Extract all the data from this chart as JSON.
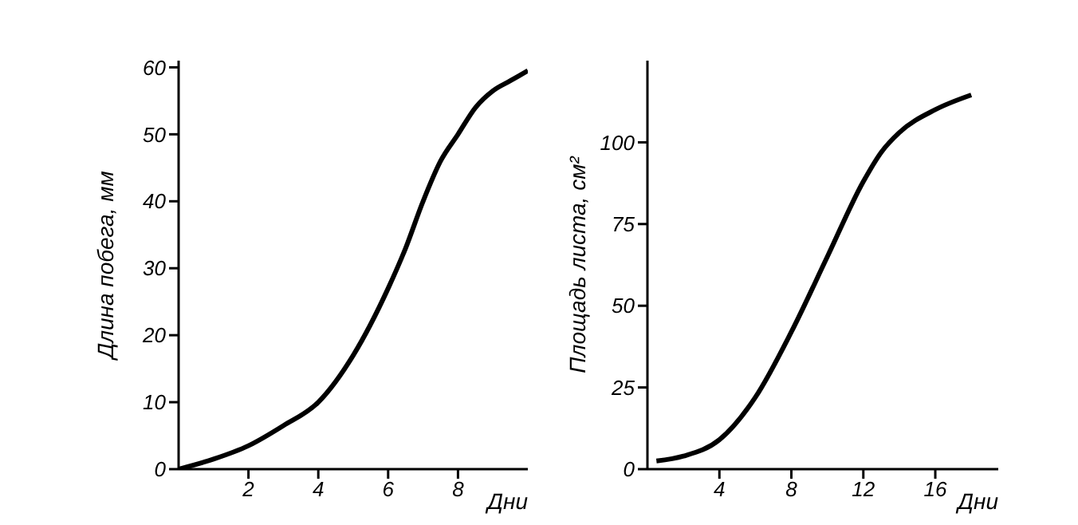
{
  "chart_data": [
    {
      "type": "line",
      "xlabel": "Дни",
      "ylabel": "Длина побега, мм",
      "x": [
        0,
        1,
        2,
        3,
        4,
        5,
        6,
        6.5,
        7,
        7.5,
        8,
        8.5,
        9,
        9.5,
        10
      ],
      "values": [
        0,
        1.5,
        3.5,
        6.5,
        10,
        17,
        27,
        33,
        40,
        46,
        50,
        54,
        56.5,
        58,
        59.5
      ],
      "color": "#000000",
      "xlim": [
        0,
        10
      ],
      "xticks": [
        2,
        4,
        6,
        8
      ],
      "ylim": [
        0,
        61
      ],
      "yticks": [
        0,
        10,
        20,
        30,
        40,
        50,
        60
      ]
    },
    {
      "type": "line",
      "xlabel": "Дни",
      "ylabel": "Площадь листа, см²",
      "x": [
        0.5,
        2,
        4,
        6,
        8,
        10,
        12,
        13,
        14,
        16,
        18
      ],
      "values": [
        2.5,
        4,
        9,
        22,
        42,
        65,
        88,
        97,
        103,
        110,
        114.5
      ],
      "color": "#000000",
      "xlim": [
        0,
        19.5
      ],
      "xticks": [
        4,
        8,
        12,
        16
      ],
      "ylim": [
        0,
        125
      ],
      "yticks": [
        0,
        25,
        50,
        75,
        100
      ]
    }
  ]
}
